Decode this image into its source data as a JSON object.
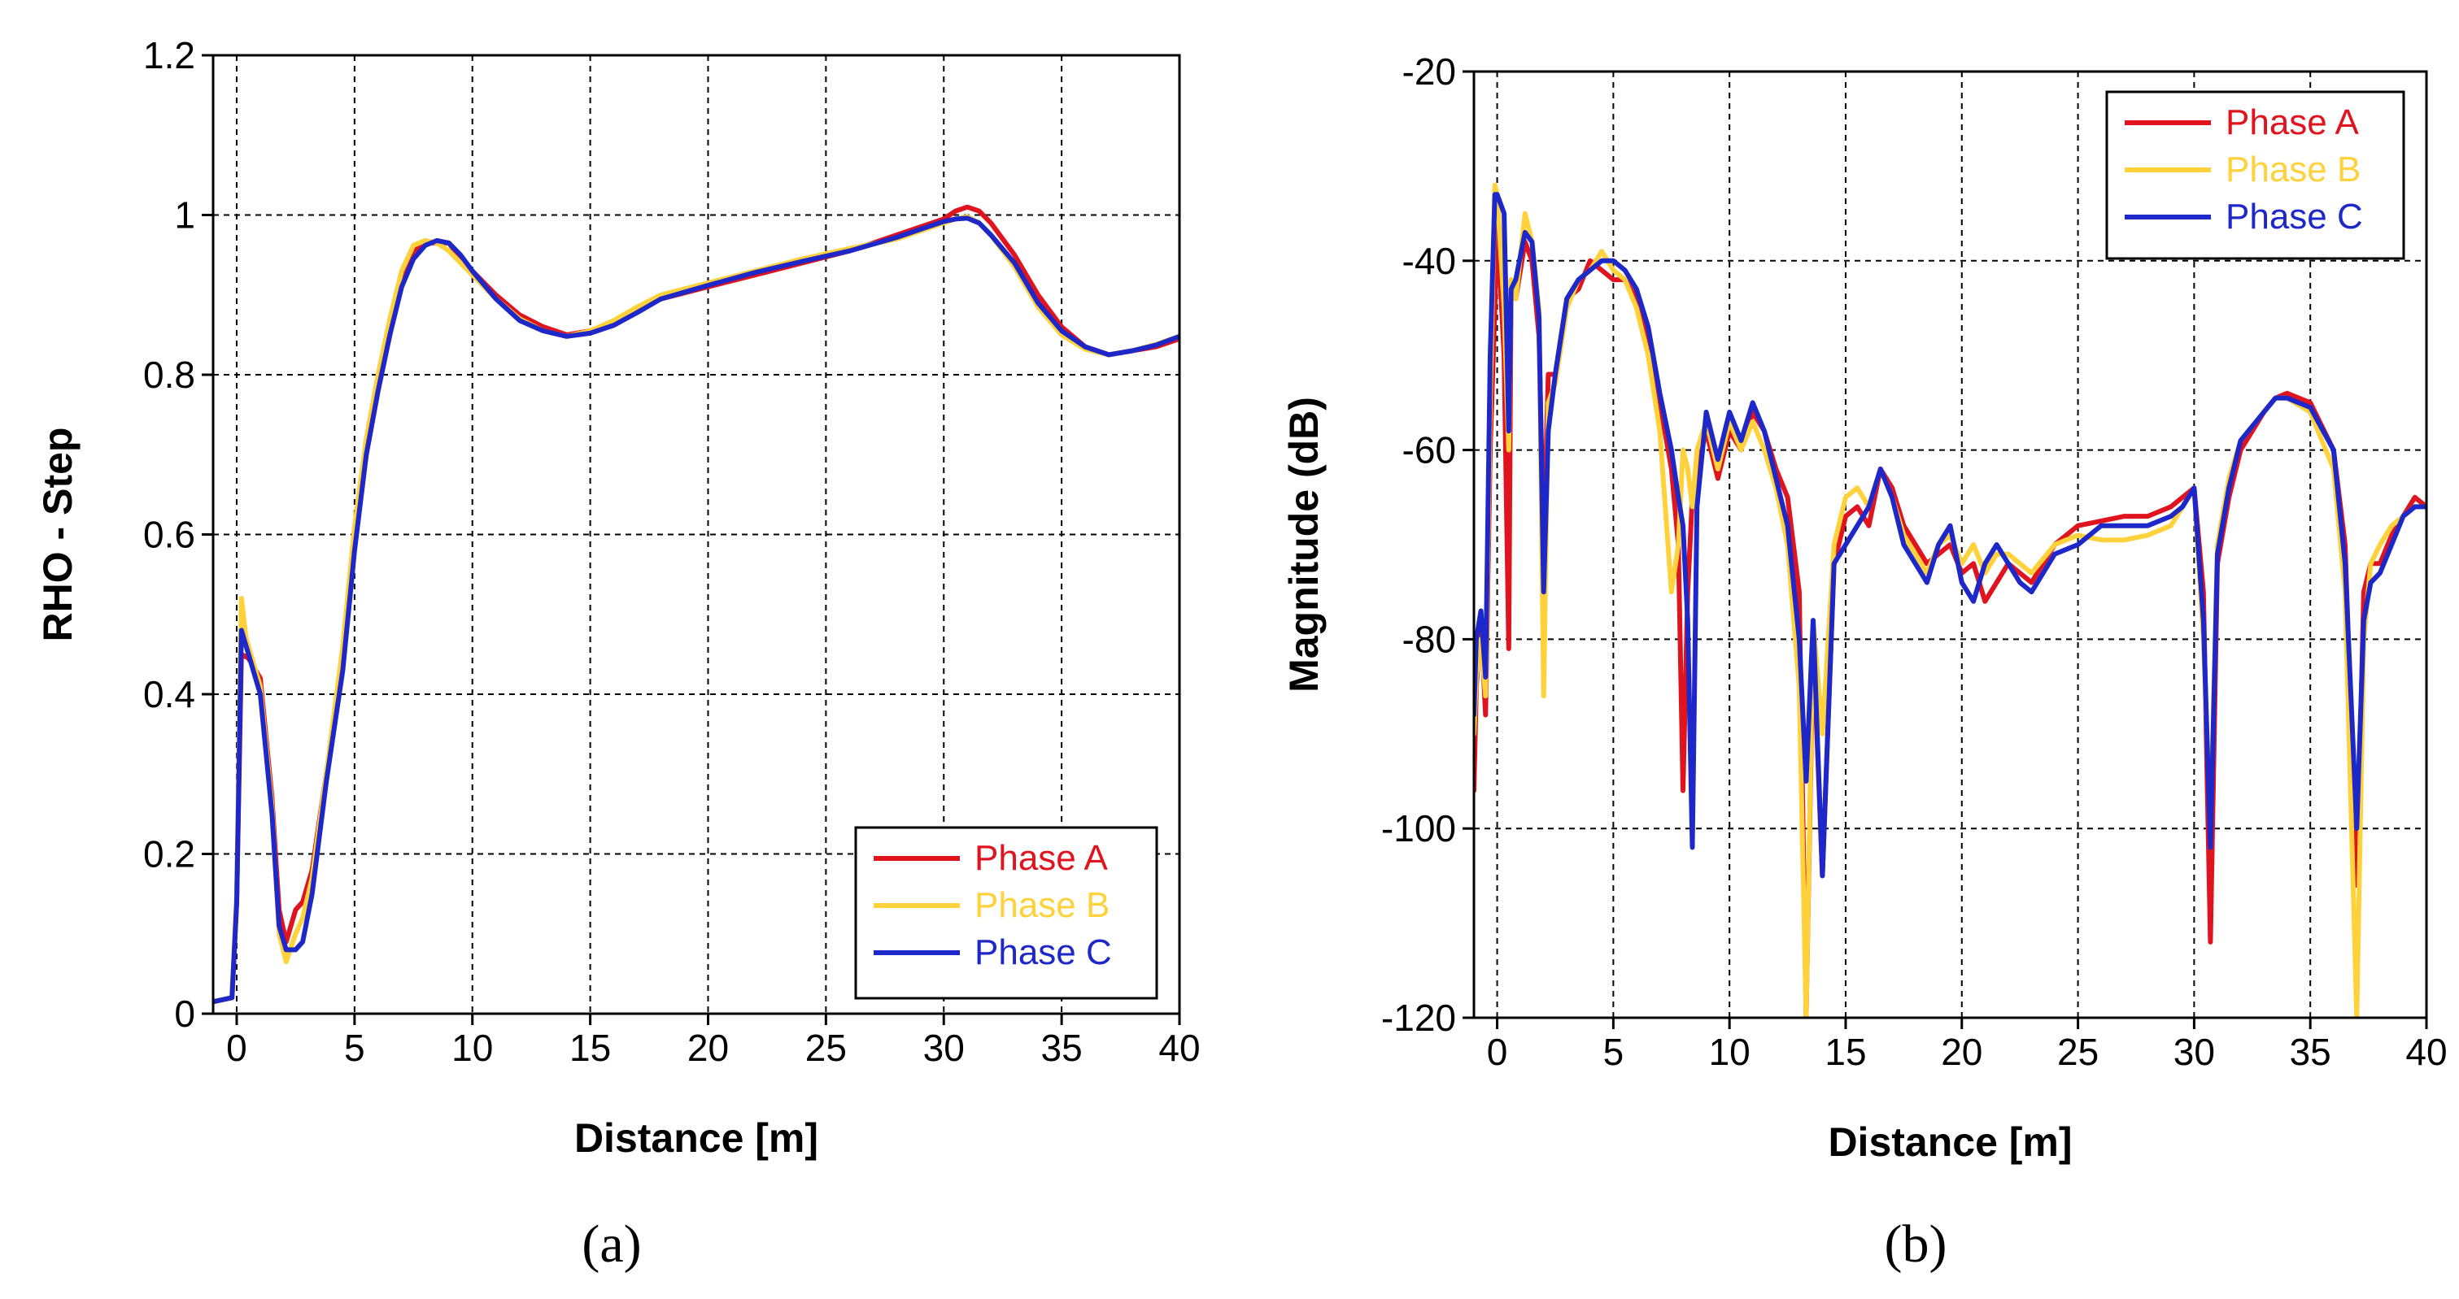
{
  "chart_data": [
    {
      "type": "line",
      "xlabel": "Distance [m]",
      "ylabel": "RHO - Step",
      "caption": "(a)",
      "xlim": [
        -1,
        40
      ],
      "ylim": [
        0,
        1.2
      ],
      "xticks": [
        0,
        5,
        10,
        15,
        20,
        25,
        30,
        35,
        40
      ],
      "yticks": [
        0,
        0.2,
        0.4,
        0.6,
        0.8,
        1,
        1.2
      ],
      "ytick_labels": [
        "0",
        "0.2",
        "0.4",
        "0.6",
        "0.8",
        "1",
        "1.2"
      ],
      "legend_position": "bottom-right",
      "grid": true,
      "series": [
        {
          "name": "Phase A",
          "color": "#e0141e",
          "x": [
            -1,
            -0.2,
            0,
            0.2,
            0.5,
            1,
            1.5,
            1.8,
            2.1,
            2.5,
            2.8,
            3.2,
            3.8,
            4.5,
            5,
            5.5,
            6,
            6.5,
            7,
            7.5,
            8,
            8.5,
            9,
            9.5,
            10,
            11,
            12,
            13,
            14,
            15,
            16,
            17,
            18,
            20,
            22,
            24,
            26,
            28,
            29,
            30,
            30.5,
            31,
            31.5,
            32,
            33,
            34,
            35,
            36,
            37,
            38,
            39,
            40
          ],
          "y": [
            0.015,
            0.02,
            0.14,
            0.45,
            0.445,
            0.42,
            0.27,
            0.13,
            0.09,
            0.13,
            0.14,
            0.18,
            0.3,
            0.44,
            0.59,
            0.7,
            0.78,
            0.85,
            0.92,
            0.955,
            0.965,
            0.965,
            0.965,
            0.945,
            0.93,
            0.9,
            0.875,
            0.86,
            0.85,
            0.855,
            0.865,
            0.88,
            0.895,
            0.91,
            0.925,
            0.94,
            0.955,
            0.975,
            0.985,
            0.995,
            1.005,
            1.01,
            1.005,
            0.99,
            0.95,
            0.9,
            0.86,
            0.835,
            0.825,
            0.83,
            0.835,
            0.845
          ]
        },
        {
          "name": "Phase B",
          "color": "#ffd23c",
          "x": [
            -1,
            -0.2,
            0,
            0.2,
            0.4,
            1,
            1.5,
            1.8,
            2.1,
            2.5,
            2.8,
            3.2,
            3.8,
            4.5,
            5,
            5.5,
            6,
            6.5,
            7,
            7.5,
            8,
            8.5,
            9,
            9.5,
            10,
            11,
            12,
            13,
            14,
            15,
            16,
            17,
            18,
            20,
            22,
            24,
            26,
            28,
            29,
            30,
            30.5,
            31,
            31.5,
            32,
            33,
            34,
            35,
            36,
            37,
            38,
            39,
            40
          ],
          "y": [
            0.015,
            0.02,
            0.15,
            0.52,
            0.47,
            0.41,
            0.26,
            0.1,
            0.065,
            0.1,
            0.12,
            0.17,
            0.3,
            0.46,
            0.61,
            0.72,
            0.8,
            0.87,
            0.93,
            0.962,
            0.968,
            0.965,
            0.955,
            0.94,
            0.925,
            0.895,
            0.87,
            0.855,
            0.848,
            0.855,
            0.868,
            0.885,
            0.9,
            0.915,
            0.93,
            0.945,
            0.958,
            0.97,
            0.98,
            0.99,
            0.995,
            0.998,
            0.99,
            0.975,
            0.935,
            0.885,
            0.85,
            0.832,
            0.825,
            0.83,
            0.838,
            0.848
          ]
        },
        {
          "name": "Phase C",
          "color": "#1e28c8",
          "x": [
            -1,
            -0.2,
            0,
            0.2,
            0.4,
            1,
            1.5,
            1.8,
            2.1,
            2.5,
            2.8,
            3.2,
            3.8,
            4.5,
            5,
            5.5,
            6,
            6.5,
            7,
            7.5,
            8,
            8.5,
            9,
            9.5,
            10,
            11,
            12,
            13,
            14,
            15,
            16,
            17,
            18,
            20,
            22,
            24,
            26,
            28,
            29,
            30,
            30.5,
            31,
            31.5,
            32,
            33,
            34,
            35,
            36,
            37,
            38,
            39,
            40
          ],
          "y": [
            0.015,
            0.02,
            0.14,
            0.48,
            0.46,
            0.4,
            0.25,
            0.11,
            0.08,
            0.08,
            0.09,
            0.15,
            0.29,
            0.43,
            0.58,
            0.7,
            0.78,
            0.85,
            0.91,
            0.945,
            0.962,
            0.968,
            0.965,
            0.95,
            0.93,
            0.895,
            0.868,
            0.855,
            0.848,
            0.852,
            0.862,
            0.878,
            0.895,
            0.912,
            0.928,
            0.942,
            0.955,
            0.972,
            0.982,
            0.992,
            0.995,
            0.996,
            0.99,
            0.975,
            0.94,
            0.89,
            0.855,
            0.835,
            0.825,
            0.83,
            0.837,
            0.848
          ]
        }
      ]
    },
    {
      "type": "line",
      "xlabel": "Distance [m]",
      "ylabel": "Magnitude (dB)",
      "caption": "(b)",
      "xlim": [
        -1,
        40
      ],
      "ylim": [
        -120,
        -20
      ],
      "xticks": [
        0,
        5,
        10,
        15,
        20,
        25,
        30,
        35,
        40
      ],
      "yticks": [
        -120,
        -100,
        -80,
        -60,
        -40,
        -20
      ],
      "ytick_labels": [
        "-120",
        "-100",
        "-80",
        "-60",
        "-40",
        "-20"
      ],
      "legend_position": "top-right",
      "grid": true,
      "series": [
        {
          "name": "Phase A",
          "color": "#e0141e",
          "x": [
            -1,
            -0.9,
            -0.7,
            -0.5,
            -0.3,
            -0.1,
            0,
            0.3,
            0.5,
            0.6,
            0.8,
            1.2,
            1.5,
            1.8,
            2,
            2.2,
            2.5,
            3,
            3.5,
            4,
            4.5,
            5,
            5.5,
            6,
            6.5,
            7,
            7.5,
            7.8,
            8,
            8.2,
            8.4,
            8.6,
            9,
            9.5,
            10,
            10.5,
            11,
            11.5,
            12,
            12.5,
            13,
            13.3,
            13.6,
            14,
            14.5,
            15,
            15.5,
            16,
            16.5,
            17,
            17.5,
            18,
            18.5,
            19,
            19.5,
            20,
            20.5,
            21,
            21.5,
            22,
            22.5,
            23,
            24,
            25,
            26,
            27,
            28,
            29,
            29.5,
            30,
            30.4,
            30.7,
            31,
            31.5,
            32,
            33,
            33.5,
            34,
            35,
            36,
            36.5,
            37,
            37.3,
            37.6,
            38,
            38.5,
            39,
            39.5,
            40
          ],
          "y": [
            -96,
            -85,
            -78,
            -88,
            -60,
            -45,
            -36,
            -50,
            -81,
            -42,
            -44,
            -38,
            -40,
            -48,
            -70,
            -52,
            -52,
            -44,
            -43,
            -40,
            -41,
            -42,
            -42,
            -44,
            -48,
            -55,
            -62,
            -70,
            -96,
            -75,
            -65,
            -62,
            -58,
            -63,
            -58,
            -60,
            -56,
            -58,
            -62,
            -65,
            -75,
            -120,
            -80,
            -105,
            -72,
            -67,
            -66,
            -68,
            -62,
            -64,
            -68,
            -70,
            -72,
            -71,
            -70,
            -73,
            -72,
            -76,
            -74,
            -72,
            -73,
            -74,
            -70,
            -68,
            -67.5,
            -67,
            -67,
            -66,
            -65,
            -64,
            -75,
            -112,
            -72,
            -65,
            -60,
            -56,
            -54.5,
            -54,
            -55,
            -60,
            -70,
            -106,
            -75,
            -72,
            -72,
            -69,
            -67,
            -65,
            -66
          ]
        },
        {
          "name": "Phase B",
          "color": "#ffd23c",
          "x": [
            -1,
            -0.9,
            -0.7,
            -0.5,
            -0.3,
            -0.1,
            0,
            0.3,
            0.5,
            0.6,
            0.8,
            1.2,
            1.5,
            1.8,
            2,
            2.2,
            2.5,
            3,
            3.5,
            4,
            4.5,
            5,
            5.5,
            6,
            6.5,
            7,
            7.5,
            7.8,
            8,
            8.2,
            8.4,
            8.6,
            9,
            9.5,
            10,
            10.5,
            11,
            11.5,
            12,
            12.5,
            13,
            13.3,
            13.6,
            14,
            14.5,
            15,
            15.5,
            16,
            16.5,
            17,
            17.5,
            18,
            18.5,
            19,
            19.5,
            20,
            20.5,
            21,
            21.5,
            22,
            22.5,
            23,
            24,
            25,
            26,
            27,
            28,
            29,
            29.5,
            30,
            30.4,
            30.7,
            31,
            31.5,
            32,
            33,
            33.5,
            34,
            35,
            36,
            36.5,
            37,
            37.3,
            37.6,
            38,
            38.5,
            39,
            39.5,
            40
          ],
          "y": [
            -90,
            -84,
            -80,
            -86,
            -55,
            -32,
            -33,
            -45,
            -60,
            -42,
            -44,
            -35,
            -38,
            -45,
            -86,
            -55,
            -53,
            -45,
            -42,
            -41,
            -39,
            -41,
            -42,
            -45,
            -50,
            -58,
            -75,
            -70,
            -60,
            -62,
            -66,
            -60,
            -57,
            -62,
            -57,
            -60,
            -57,
            -60,
            -64,
            -70,
            -85,
            -120,
            -78,
            -90,
            -70,
            -65,
            -64,
            -66,
            -62,
            -65,
            -69,
            -71,
            -73,
            -70,
            -69,
            -72,
            -70,
            -73,
            -71,
            -71,
            -72,
            -73,
            -70,
            -69,
            -69.5,
            -69.5,
            -69,
            -68,
            -66,
            -64,
            -80,
            -100,
            -70,
            -63,
            -59,
            -56,
            -54.5,
            -54.5,
            -56,
            -62,
            -75,
            -120,
            -80,
            -72,
            -70,
            -68,
            -67,
            -66,
            -66
          ]
        },
        {
          "name": "Phase C",
          "color": "#1e28c8",
          "x": [
            -1,
            -0.9,
            -0.7,
            -0.5,
            -0.3,
            -0.1,
            0,
            0.3,
            0.5,
            0.6,
            0.8,
            1.2,
            1.5,
            1.8,
            2,
            2.2,
            2.5,
            3,
            3.5,
            4,
            4.5,
            5,
            5.5,
            6,
            6.5,
            7,
            7.5,
            7.8,
            8,
            8.2,
            8.4,
            8.6,
            9,
            9.5,
            10,
            10.5,
            11,
            11.5,
            12,
            12.5,
            13,
            13.3,
            13.6,
            14,
            14.5,
            15,
            15.5,
            16,
            16.5,
            17,
            17.5,
            18,
            18.5,
            19,
            19.5,
            20,
            20.5,
            21,
            21.5,
            22,
            22.5,
            23,
            24,
            25,
            26,
            27,
            28,
            29,
            29.5,
            30,
            30.4,
            30.7,
            31,
            31.5,
            32,
            33,
            33.5,
            34,
            35,
            36,
            36.5,
            37,
            37.3,
            37.6,
            38,
            38.5,
            39,
            39.5,
            40
          ],
          "y": [
            -88,
            -80,
            -77,
            -84,
            -50,
            -33,
            -33,
            -35,
            -58,
            -43,
            -42,
            -37,
            -38,
            -46,
            -75,
            -58,
            -52,
            -44,
            -42,
            -41,
            -40,
            -40,
            -41,
            -43,
            -47,
            -54,
            -60,
            -65,
            -68,
            -78,
            -102,
            -66,
            -56,
            -61,
            -56,
            -59,
            -55,
            -58,
            -63,
            -68,
            -80,
            -95,
            -78,
            -105,
            -72,
            -70,
            -68,
            -66,
            -62,
            -65,
            -70,
            -72,
            -74,
            -70,
            -68,
            -74,
            -76,
            -72,
            -70,
            -72,
            -74,
            -75,
            -71,
            -70,
            -68,
            -68,
            -68,
            -67,
            -66,
            -64,
            -78,
            -102,
            -71,
            -64,
            -59,
            -56,
            -54.5,
            -54.5,
            -55.5,
            -60,
            -72,
            -100,
            -78,
            -74,
            -73,
            -70,
            -67,
            -66,
            -66
          ]
        }
      ]
    }
  ]
}
